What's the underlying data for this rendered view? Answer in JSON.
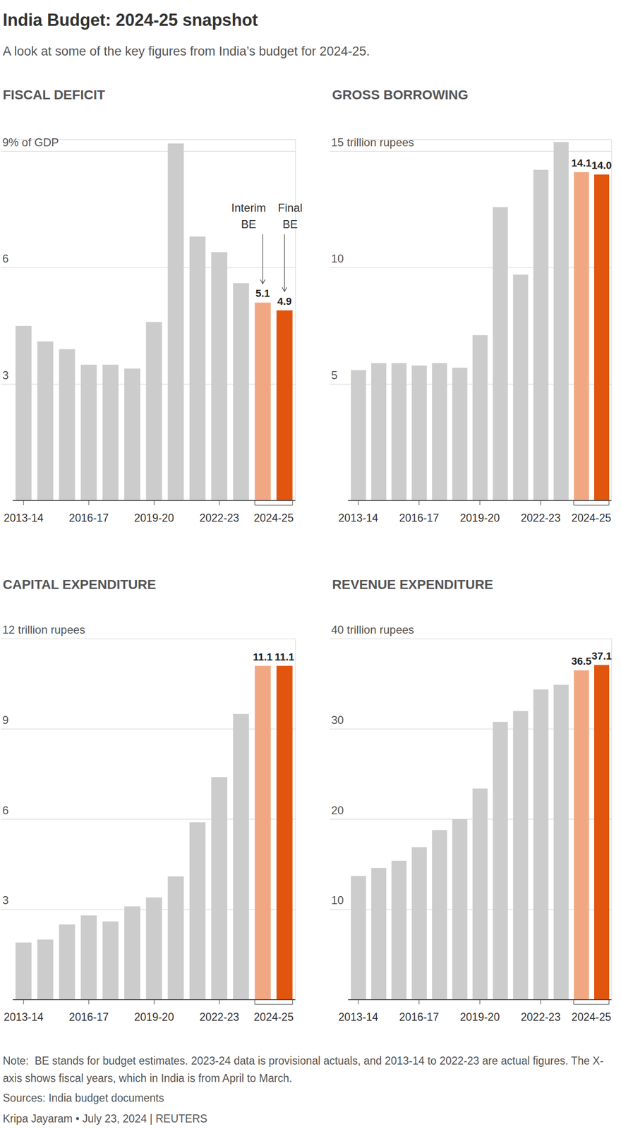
{
  "title": "India Budget: 2024-25 snapshot",
  "subtitle": "A look at some of the key figures from India’s budget for 2024-25.",
  "note": "Note:  BE stands for budget estimates. 2023-24 data is provisional actuals, and 2013-14 to 2022-23 are actual figures. The X-axis shows fiscal years, which in India is from April to March.",
  "source": "Sources: India budget documents",
  "credit": "Kripa Jayaram • July 23, 2024 | REUTERS",
  "chart_data": [
    {
      "type": "bar",
      "title": "FISCAL DEFICIT",
      "categories": [
        "2013-14",
        null,
        null,
        "2016-17",
        null,
        null,
        "2019-20",
        null,
        null,
        "2022-23",
        null,
        "2024-25",
        null
      ],
      "values": [
        4.5,
        4.1,
        3.9,
        3.5,
        3.5,
        3.4,
        4.6,
        9.2,
        6.8,
        6.4,
        5.6,
        5.1,
        4.9
      ],
      "colors": [
        "#cccccc",
        "#cccccc",
        "#cccccc",
        "#cccccc",
        "#cccccc",
        "#cccccc",
        "#cccccc",
        "#cccccc",
        "#cccccc",
        "#cccccc",
        "#cccccc",
        "#f2a783",
        "#e2550e"
      ],
      "data_labels": true,
      "value_labels": [
        null,
        null,
        null,
        null,
        null,
        null,
        null,
        null,
        null,
        null,
        null,
        "5.1",
        "4.9"
      ],
      "annotations": [
        "Interim BE",
        "Final BE"
      ],
      "ylim": [
        0,
        9.3
      ],
      "yticks": [
        3,
        6,
        {
          "value": 9,
          "label": "9% of GDP"
        }
      ],
      "grid": true
    },
    {
      "type": "bar",
      "title": "GROSS BORROWING",
      "categories": [
        "2013-14",
        null,
        null,
        "2016-17",
        null,
        null,
        "2019-20",
        null,
        null,
        "2022-23",
        null,
        "2024-25",
        null
      ],
      "values": [
        5.6,
        5.9,
        5.9,
        5.8,
        5.9,
        5.7,
        7.1,
        12.6,
        9.7,
        14.2,
        15.4,
        14.1,
        14.0
      ],
      "colors": [
        "#cccccc",
        "#cccccc",
        "#cccccc",
        "#cccccc",
        "#cccccc",
        "#cccccc",
        "#cccccc",
        "#cccccc",
        "#cccccc",
        "#cccccc",
        "#cccccc",
        "#f2a783",
        "#e2550e"
      ],
      "data_labels": true,
      "value_labels": [
        null,
        null,
        null,
        null,
        null,
        null,
        null,
        null,
        null,
        null,
        null,
        "14.1",
        "14.0"
      ],
      "ylim": [
        0,
        15.5
      ],
      "yticks": [
        5,
        10,
        {
          "value": 15,
          "label": "15 trillion rupees"
        }
      ],
      "grid": true
    },
    {
      "type": "bar",
      "title": "CAPITAL EXPENDITURE",
      "categories": [
        "2013-14",
        null,
        null,
        "2016-17",
        null,
        null,
        "2019-20",
        null,
        null,
        "2022-23",
        null,
        "2024-25",
        null
      ],
      "values": [
        1.9,
        2.0,
        2.5,
        2.8,
        2.6,
        3.1,
        3.4,
        4.1,
        5.9,
        7.4,
        9.5,
        11.1,
        11.1
      ],
      "colors": [
        "#cccccc",
        "#cccccc",
        "#cccccc",
        "#cccccc",
        "#cccccc",
        "#cccccc",
        "#cccccc",
        "#cccccc",
        "#cccccc",
        "#cccccc",
        "#cccccc",
        "#f2a783",
        "#e2550e"
      ],
      "data_labels": true,
      "value_labels": [
        null,
        null,
        null,
        null,
        null,
        null,
        null,
        null,
        null,
        null,
        null,
        "11.1",
        "11.1"
      ],
      "ylim": [
        0,
        12
      ],
      "yticks": [
        3,
        6,
        9,
        {
          "value": 12,
          "label": "12 trillion rupees"
        }
      ],
      "grid": true
    },
    {
      "type": "bar",
      "title": "REVENUE EXPENDITURE",
      "categories": [
        "2013-14",
        null,
        null,
        "2016-17",
        null,
        null,
        "2019-20",
        null,
        null,
        "2022-23",
        null,
        "2024-25",
        null
      ],
      "values": [
        13.7,
        14.6,
        15.4,
        16.9,
        18.8,
        20.0,
        23.4,
        30.8,
        32.0,
        34.4,
        34.9,
        36.5,
        37.1
      ],
      "colors": [
        "#cccccc",
        "#cccccc",
        "#cccccc",
        "#cccccc",
        "#cccccc",
        "#cccccc",
        "#cccccc",
        "#cccccc",
        "#cccccc",
        "#cccccc",
        "#cccccc",
        "#f2a783",
        "#e2550e"
      ],
      "data_labels": true,
      "value_labels": [
        null,
        null,
        null,
        null,
        null,
        null,
        null,
        null,
        null,
        null,
        null,
        "36.5",
        "37.1"
      ],
      "ylim": [
        0,
        40
      ],
      "yticks": [
        10,
        20,
        30,
        {
          "value": 40,
          "label": "40 trillion rupees"
        }
      ],
      "grid": true
    }
  ]
}
